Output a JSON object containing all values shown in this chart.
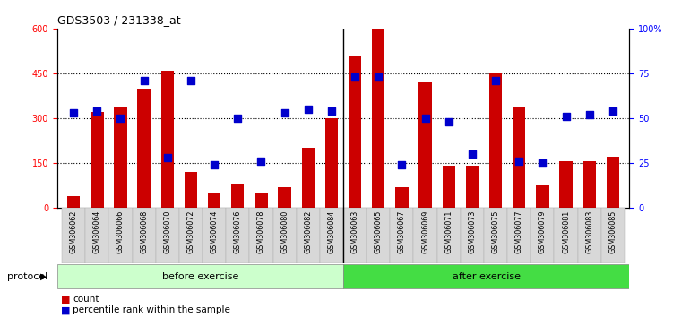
{
  "title": "GDS3503 / 231338_at",
  "categories": [
    "GSM306062",
    "GSM306064",
    "GSM306066",
    "GSM306068",
    "GSM306070",
    "GSM306072",
    "GSM306074",
    "GSM306076",
    "GSM306078",
    "GSM306080",
    "GSM306082",
    "GSM306084",
    "GSM306063",
    "GSM306065",
    "GSM306067",
    "GSM306069",
    "GSM306071",
    "GSM306073",
    "GSM306075",
    "GSM306077",
    "GSM306079",
    "GSM306081",
    "GSM306083",
    "GSM306085"
  ],
  "counts": [
    40,
    320,
    340,
    400,
    460,
    120,
    50,
    80,
    50,
    70,
    200,
    300,
    510,
    600,
    70,
    420,
    140,
    140,
    450,
    340,
    75,
    155,
    155,
    170
  ],
  "percentile_ranks": [
    53,
    54,
    50,
    71,
    28,
    71,
    24,
    50,
    26,
    53,
    55,
    54,
    73,
    73,
    24,
    50,
    48,
    30,
    71,
    26,
    25,
    51,
    52,
    54
  ],
  "before_exercise_count": 12,
  "after_exercise_count": 12,
  "left_yticks": [
    0,
    150,
    300,
    450,
    600
  ],
  "right_yticks": [
    0,
    25,
    50,
    75,
    100
  ],
  "ylim_left": [
    0,
    600
  ],
  "ylim_right": [
    0,
    100
  ],
  "bar_color": "#cc0000",
  "dot_color": "#0000cc",
  "before_color": "#ccffcc",
  "after_color": "#44dd44",
  "protocol_label": "protocol",
  "before_label": "before exercise",
  "after_label": "after exercise",
  "legend_count": "count",
  "legend_pct": "percentile rank within the sample",
  "bar_width": 0.55,
  "title_fontsize": 9,
  "tick_fontsize": 7,
  "label_fontsize": 8
}
